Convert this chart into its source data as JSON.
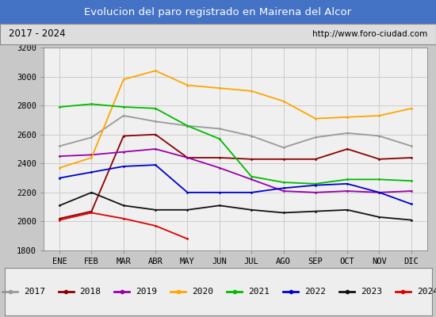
{
  "title": "Evolucion del paro registrado en Mairena del Alcor",
  "subtitle_left": "2017 - 2024",
  "subtitle_right": "http://www.foro-ciudad.com",
  "xlabel_months": [
    "ENE",
    "FEB",
    "MAR",
    "ABR",
    "MAY",
    "JUN",
    "JUL",
    "AGO",
    "SEP",
    "OCT",
    "NOV",
    "DIC"
  ],
  "ylim": [
    1800,
    3200
  ],
  "yticks": [
    1800,
    2000,
    2200,
    2400,
    2600,
    2800,
    3000,
    3200
  ],
  "series_2017": {
    "color": "#999999",
    "values": [
      2520,
      2580,
      2730,
      2690,
      2660,
      2640,
      2590,
      2510,
      2580,
      2610,
      2590,
      2520
    ]
  },
  "series_2018": {
    "color": "#8B0000",
    "values": [
      2020,
      2070,
      2590,
      2600,
      2440,
      2440,
      2430,
      2430,
      2430,
      2500,
      2430,
      2440
    ]
  },
  "series_2019": {
    "color": "#9900AA",
    "values": [
      2450,
      2460,
      2480,
      2500,
      2440,
      2370,
      2290,
      2210,
      2200,
      2210,
      2200,
      2210
    ]
  },
  "series_2020": {
    "color": "#FFA500",
    "values": [
      2370,
      2440,
      2980,
      3040,
      2940,
      2920,
      2900,
      2830,
      2710,
      2720,
      2730,
      2780
    ]
  },
  "series_2021": {
    "color": "#00BB00",
    "values": [
      2790,
      2810,
      2790,
      2780,
      2660,
      2570,
      2310,
      2270,
      2260,
      2290,
      2290,
      2280
    ]
  },
  "series_2022": {
    "color": "#0000CC",
    "values": [
      2300,
      2340,
      2380,
      2390,
      2200,
      2200,
      2200,
      2230,
      2250,
      2260,
      2200,
      2120
    ]
  },
  "series_2023": {
    "color": "#111111",
    "values": [
      2110,
      2200,
      2110,
      2080,
      2080,
      2110,
      2080,
      2060,
      2070,
      2080,
      2030,
      2010
    ]
  },
  "series_2024": {
    "color": "#DD0000",
    "values": [
      2010,
      2060,
      2020,
      1970,
      1880,
      null,
      null,
      null,
      null,
      null,
      null,
      null
    ]
  },
  "title_bg_color": "#4472C4",
  "title_text_color": "#FFFFFF",
  "plot_bg_color": "#F0F0F0",
  "fig_bg_color": "#C8C8C8",
  "subtitle_bg_color": "#DDDDDD",
  "grid_color": "#CCCCCC"
}
